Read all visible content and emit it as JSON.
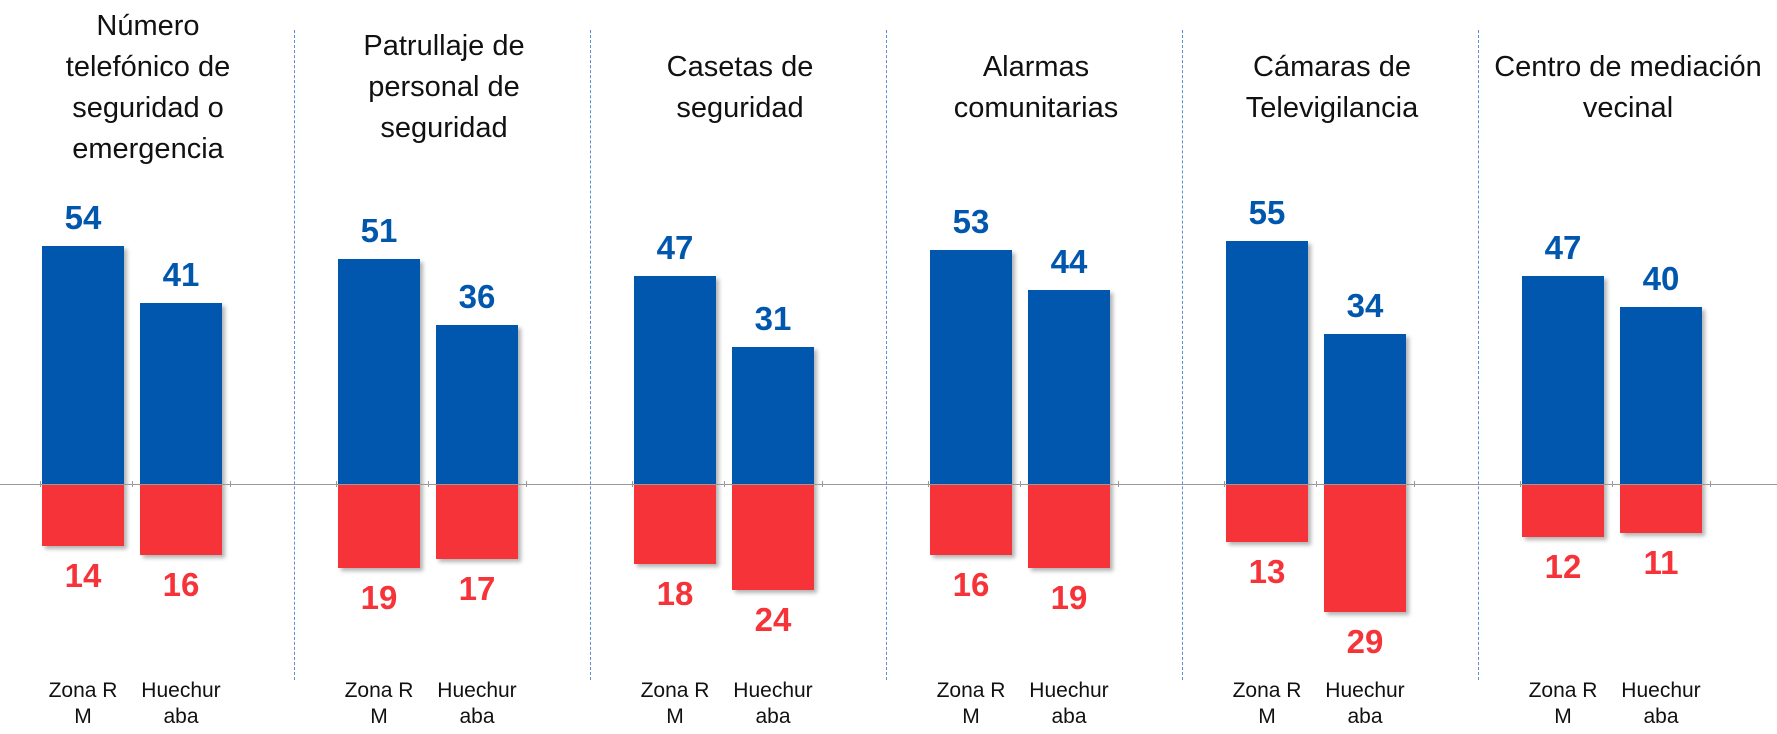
{
  "chart_data": [
    {
      "type": "bar",
      "title": "Número telefónico de seguridad o emergencia",
      "categories": [
        "Zona RM",
        "Huechuraba"
      ],
      "ylim": [
        -40,
        60
      ],
      "series": [
        {
          "color": "#0057ad",
          "values": [
            54,
            41
          ]
        },
        {
          "color": "#f53338",
          "values": [
            -14,
            -16
          ],
          "value_labels": [
            "14",
            "16"
          ]
        }
      ]
    },
    {
      "type": "bar",
      "title": "Patrullaje de personal de seguridad",
      "categories": [
        "Zona RM",
        "Huechuraba"
      ],
      "ylim": [
        -40,
        60
      ],
      "series": [
        {
          "color": "#0057ad",
          "values": [
            51,
            36
          ]
        },
        {
          "color": "#f53338",
          "values": [
            -19,
            -17
          ],
          "value_labels": [
            "19",
            "17"
          ]
        }
      ]
    },
    {
      "type": "bar",
      "title": "Casetas de seguridad",
      "categories": [
        "Zona RM",
        "Huechuraba"
      ],
      "ylim": [
        -40,
        60
      ],
      "series": [
        {
          "color": "#0057ad",
          "values": [
            47,
            31
          ]
        },
        {
          "color": "#f53338",
          "values": [
            -18,
            -24
          ],
          "value_labels": [
            "18",
            "24"
          ]
        }
      ]
    },
    {
      "type": "bar",
      "title": "Alarmas comunitarias",
      "categories": [
        "Zona RM",
        "Huechuraba"
      ],
      "ylim": [
        -40,
        60
      ],
      "series": [
        {
          "color": "#0057ad",
          "values": [
            53,
            44
          ]
        },
        {
          "color": "#f53338",
          "values": [
            -16,
            -19
          ],
          "value_labels": [
            "16",
            "19"
          ]
        }
      ]
    },
    {
      "type": "bar",
      "title": "Cámaras de Televigilancia",
      "categories": [
        "Zona RM",
        "Huechuraba"
      ],
      "ylim": [
        -40,
        60
      ],
      "series": [
        {
          "color": "#0057ad",
          "values": [
            55,
            34
          ]
        },
        {
          "color": "#f53338",
          "values": [
            -13,
            -29
          ],
          "value_labels": [
            "13",
            "29"
          ]
        }
      ]
    },
    {
      "type": "bar",
      "title": "Centro de mediación vecinal",
      "categories": [
        "Zona RM",
        "Huechuraba"
      ],
      "ylim": [
        -40,
        60
      ],
      "series": [
        {
          "color": "#0057ad",
          "values": [
            47,
            40
          ]
        },
        {
          "color": "#f53338",
          "values": [
            -12,
            -11
          ],
          "value_labels": [
            "12",
            "11"
          ]
        }
      ]
    }
  ]
}
